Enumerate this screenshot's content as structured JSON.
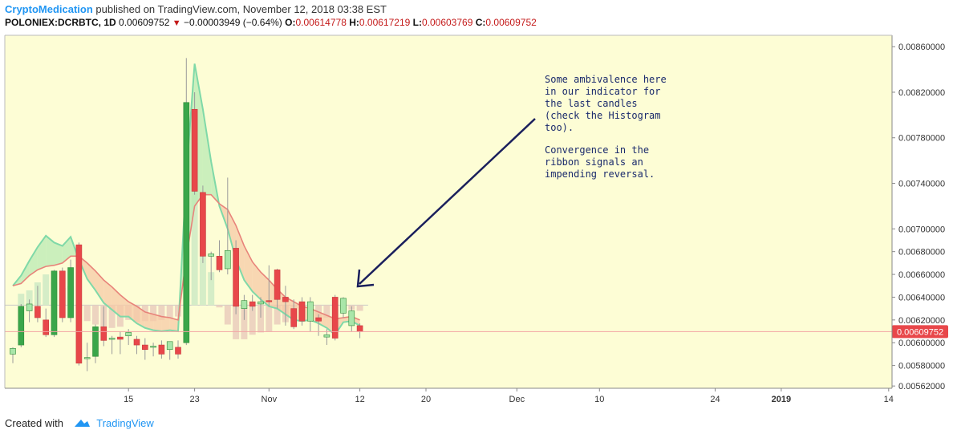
{
  "header": {
    "author": "CryptoMedication",
    "published": "published on TradingView.com, November 12, 2018 03:38 EST",
    "symbol": "POLONIEX:DCRBTC, 1D",
    "last": "0.00609752",
    "change": "−0.00003949 (−0.64%)",
    "o_label": "O:",
    "o_val": "0.00614778",
    "h_label": "H:",
    "h_val": "0.00617219",
    "l_label": "L:",
    "l_val": "0.00603769",
    "c_label": "C:",
    "c_val": "0.00609752"
  },
  "footer": {
    "created_with": "Created with",
    "brand": "TradingView"
  },
  "annotation": {
    "lines1": [
      "Some ambivalence here",
      "in our indicator for",
      "the last candles",
      "(check the Histogram",
      "too)."
    ],
    "lines2": [
      "Convergence in the",
      "ribbon signals an",
      "impending reversal."
    ]
  },
  "colors": {
    "background": "#fdfdd5",
    "up": "#3aa64a",
    "down": "#e8474a",
    "up_light": "#a9e6a9",
    "price_tag": "#e8474a"
  },
  "chart_data": {
    "type": "candlestick",
    "price_axis": {
      "min": 0.0056,
      "max": 0.0087,
      "ticks": [
        "0.00860000",
        "0.00820000",
        "0.00780000",
        "0.00740000",
        "0.00700000",
        "0.00680000",
        "0.00660000",
        "0.00640000",
        "0.00620000",
        "0.00600000",
        "0.00580000",
        "0.00562000"
      ],
      "last_price_label": "0.00609752",
      "last_price": 0.00609752
    },
    "time_axis": {
      "start_day": 0,
      "day_span": 100,
      "labels": [
        {
          "text": "15",
          "day": 14,
          "bold": false
        },
        {
          "text": "23",
          "day": 22,
          "bold": false
        },
        {
          "text": "Nov",
          "day": 31,
          "bold": false
        },
        {
          "text": "12",
          "day": 42,
          "bold": false
        },
        {
          "text": "20",
          "day": 50,
          "bold": false
        },
        {
          "text": "Dec",
          "day": 61,
          "bold": false
        },
        {
          "text": "10",
          "day": 71,
          "bold": false
        },
        {
          "text": "24",
          "day": 85,
          "bold": false
        },
        {
          "text": "2019",
          "day": 93,
          "bold": true
        },
        {
          "text": "14",
          "day": 106,
          "bold": false
        }
      ]
    },
    "candles": [
      {
        "o": 0.0059,
        "h": 0.00596,
        "l": 0.00582,
        "c": 0.00595
      },
      {
        "o": 0.00598,
        "h": 0.00634,
        "l": 0.00596,
        "c": 0.00632
      },
      {
        "o": 0.00628,
        "h": 0.00638,
        "l": 0.00618,
        "c": 0.00634
      },
      {
        "o": 0.00632,
        "h": 0.0065,
        "l": 0.00618,
        "c": 0.00622
      },
      {
        "o": 0.0062,
        "h": 0.0063,
        "l": 0.00605,
        "c": 0.00607
      },
      {
        "o": 0.00607,
        "h": 0.00664,
        "l": 0.00605,
        "c": 0.00663
      },
      {
        "o": 0.00663,
        "h": 0.00666,
        "l": 0.00618,
        "c": 0.00622
      },
      {
        "o": 0.00622,
        "h": 0.00673,
        "l": 0.00618,
        "c": 0.00666
      },
      {
        "o": 0.00686,
        "h": 0.00688,
        "l": 0.0058,
        "c": 0.00582
      },
      {
        "o": 0.00586,
        "h": 0.006,
        "l": 0.00575,
        "c": 0.00587
      },
      {
        "o": 0.00588,
        "h": 0.00616,
        "l": 0.00582,
        "c": 0.00614
      },
      {
        "o": 0.00614,
        "h": 0.00632,
        "l": 0.00597,
        "c": 0.00602
      },
      {
        "o": 0.00603,
        "h": 0.00606,
        "l": 0.0059,
        "c": 0.00604
      },
      {
        "o": 0.00605,
        "h": 0.0061,
        "l": 0.0059,
        "c": 0.00603
      },
      {
        "o": 0.00606,
        "h": 0.00612,
        "l": 0.00598,
        "c": 0.00609
      },
      {
        "o": 0.00603,
        "h": 0.00606,
        "l": 0.0059,
        "c": 0.00598
      },
      {
        "o": 0.00598,
        "h": 0.00604,
        "l": 0.00585,
        "c": 0.00594
      },
      {
        "o": 0.00596,
        "h": 0.006,
        "l": 0.00588,
        "c": 0.00597
      },
      {
        "o": 0.00598,
        "h": 0.00602,
        "l": 0.00586,
        "c": 0.0059
      },
      {
        "o": 0.00594,
        "h": 0.006,
        "l": 0.00585,
        "c": 0.00601
      },
      {
        "o": 0.00596,
        "h": 0.00602,
        "l": 0.00586,
        "c": 0.0059
      },
      {
        "o": 0.006,
        "h": 0.0085,
        "l": 0.00598,
        "c": 0.00811
      },
      {
        "o": 0.00805,
        "h": 0.0082,
        "l": 0.0073,
        "c": 0.00733
      },
      {
        "o": 0.00732,
        "h": 0.00738,
        "l": 0.0067,
        "c": 0.00676
      },
      {
        "o": 0.00676,
        "h": 0.0068,
        "l": 0.00655,
        "c": 0.00678
      },
      {
        "o": 0.00676,
        "h": 0.0069,
        "l": 0.00662,
        "c": 0.00664
      },
      {
        "o": 0.00665,
        "h": 0.00745,
        "l": 0.0066,
        "c": 0.00681
      },
      {
        "o": 0.00683,
        "h": 0.0069,
        "l": 0.00625,
        "c": 0.00632
      },
      {
        "o": 0.0063,
        "h": 0.00642,
        "l": 0.0062,
        "c": 0.00637
      },
      {
        "o": 0.00636,
        "h": 0.00642,
        "l": 0.00628,
        "c": 0.00632
      },
      {
        "o": 0.00634,
        "h": 0.0064,
        "l": 0.00622,
        "c": 0.00636
      },
      {
        "o": 0.00637,
        "h": 0.00668,
        "l": 0.00632,
        "c": 0.00636
      },
      {
        "o": 0.00664,
        "h": 0.00665,
        "l": 0.0063,
        "c": 0.00638
      },
      {
        "o": 0.0064,
        "h": 0.0065,
        "l": 0.00615,
        "c": 0.00636
      },
      {
        "o": 0.0063,
        "h": 0.00638,
        "l": 0.00612,
        "c": 0.00614
      },
      {
        "o": 0.00636,
        "h": 0.0064,
        "l": 0.00615,
        "c": 0.00619
      },
      {
        "o": 0.00619,
        "h": 0.0064,
        "l": 0.0061,
        "c": 0.00636
      },
      {
        "o": 0.00622,
        "h": 0.00625,
        "l": 0.00606,
        "c": 0.00619
      },
      {
        "o": 0.00605,
        "h": 0.00612,
        "l": 0.00598,
        "c": 0.00607
      },
      {
        "o": 0.0064,
        "h": 0.00642,
        "l": 0.00602,
        "c": 0.00604
      },
      {
        "o": 0.00626,
        "h": 0.0064,
        "l": 0.00622,
        "c": 0.00639
      },
      {
        "o": 0.00615,
        "h": 0.00632,
        "l": 0.0061,
        "c": 0.00628
      },
      {
        "o": 0.00615,
        "h": 0.00617,
        "l": 0.00604,
        "c": 0.0061
      }
    ],
    "ribbon_fast": [
      0.0065,
      0.00659,
      0.00672,
      0.00684,
      0.00694,
      0.00688,
      0.00685,
      0.00693,
      0.00673,
      0.00656,
      0.00646,
      0.00635,
      0.00629,
      0.00623,
      0.00623,
      0.00617,
      0.00613,
      0.00611,
      0.0061,
      0.00611,
      0.0061,
      0.00748,
      0.00845,
      0.00805,
      0.00759,
      0.0072,
      0.007,
      0.00673,
      0.00655,
      0.00645,
      0.00638,
      0.00632,
      0.0063,
      0.00625,
      0.0062,
      0.00619,
      0.0062,
      0.00617,
      0.00613,
      0.00607,
      0.00618,
      0.00619,
      0.00615
    ],
    "ribbon_slow": [
      0.0065,
      0.00652,
      0.00659,
      0.00664,
      0.00667,
      0.00668,
      0.0067,
      0.00676,
      0.00676,
      0.0067,
      0.00663,
      0.00655,
      0.00649,
      0.00642,
      0.00636,
      0.00632,
      0.00627,
      0.00625,
      0.00623,
      0.00622,
      0.0062,
      0.00675,
      0.0072,
      0.0073,
      0.0073,
      0.00722,
      0.00717,
      0.00703,
      0.00685,
      0.00671,
      0.00662,
      0.00655,
      0.00647,
      0.0064,
      0.00636,
      0.00632,
      0.0063,
      0.00627,
      0.00624,
      0.00621,
      0.00622,
      0.00623,
      0.0062
    ],
    "histogram_zero": 0.00633,
    "histogram": [
      0,
      0.0001,
      0.00013,
      0.0002,
      0.00027,
      0.0002,
      0.00015,
      0.00017,
      -3e-05,
      -0.00014,
      -0.00017,
      -0.0002,
      -0.0002,
      -0.00019,
      -0.00013,
      -0.00015,
      -0.00014,
      -0.00014,
      -0.00013,
      -0.00011,
      -0.0001,
      0.00073,
      0.00125,
      0.00075,
      0.00029,
      -2e-05,
      -0.00017,
      -0.0003,
      -0.0003,
      -0.00026,
      -0.00024,
      -0.00023,
      -0.00017,
      -0.00015,
      -0.00016,
      -0.00013,
      -0.0001,
      -0.0001,
      -0.00011,
      -0.00014,
      -4e-05,
      -4e-05,
      -5e-05
    ]
  }
}
